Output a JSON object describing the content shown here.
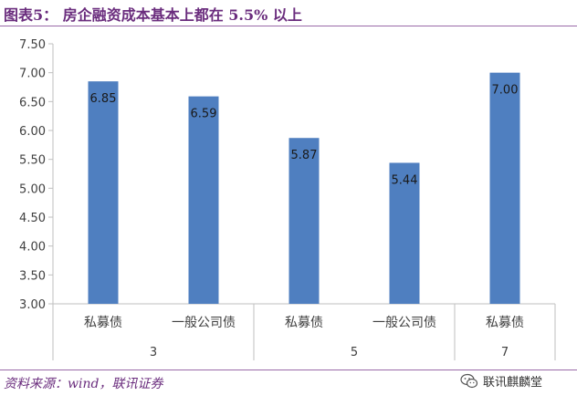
{
  "figure": {
    "title": "图表5：  房企融资成本基本上都在 5.5% 以上",
    "source": "资料来源：wind，联讯证券",
    "watermark": "联讯麒麟堂",
    "watermark_icon": "wechat-icon"
  },
  "colors": {
    "bar": "#4f7fc0",
    "title": "#6a2c7d",
    "axis": "#bfbfbf",
    "text": "#404040"
  },
  "chart_data": {
    "type": "bar",
    "title": "",
    "xlabel": "",
    "ylabel": "",
    "ylim": [
      3.0,
      7.5
    ],
    "yticks": [
      "3.00",
      "3.50",
      "4.00",
      "4.50",
      "5.00",
      "5.50",
      "6.00",
      "6.50",
      "7.00",
      "7.50"
    ],
    "grid": false,
    "legend": "none",
    "categories": [
      "私募债",
      "一般公司债",
      "私募债",
      "一般公司债",
      "私募债"
    ],
    "values": [
      6.85,
      6.59,
      5.87,
      5.44,
      7.0
    ],
    "data_labels": [
      "6.85",
      "6.59",
      "5.87",
      "5.44",
      "7.00"
    ],
    "groups": [
      {
        "label": "3",
        "span": 2
      },
      {
        "label": "5",
        "span": 2
      },
      {
        "label": "7",
        "span": 1
      }
    ]
  }
}
